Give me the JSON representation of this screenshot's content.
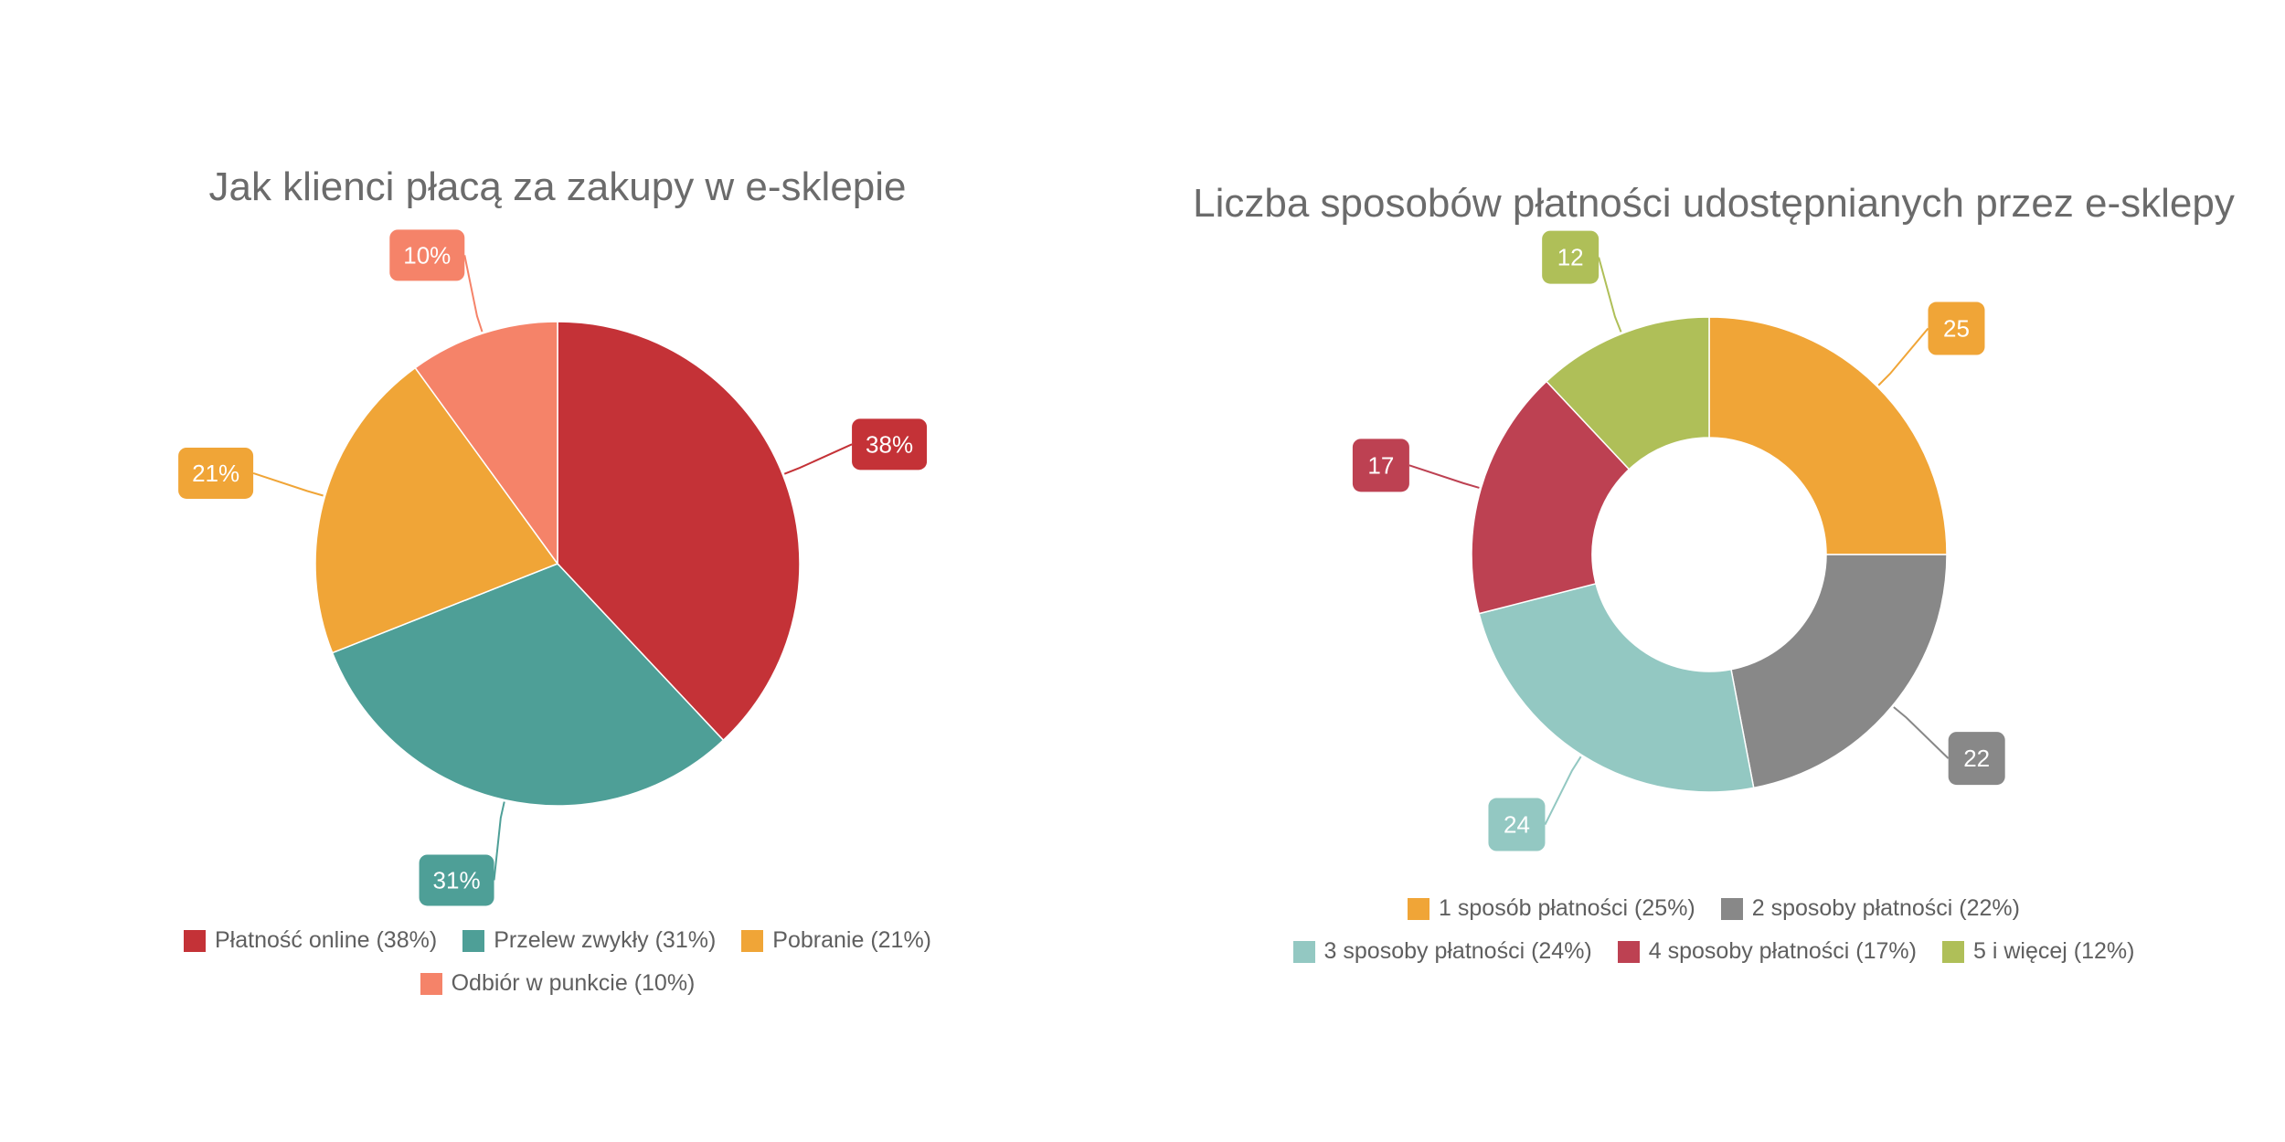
{
  "chart_data": [
    {
      "type": "pie",
      "title": "Jak klienci płacą za zakupy w e-sklepie",
      "categories": [
        "Płatność online",
        "Przelew zwykły",
        "Pobranie",
        "Odbiór w punkcie"
      ],
      "values": [
        38,
        31,
        21,
        10
      ],
      "value_labels": [
        "38%",
        "31%",
        "21%",
        "10%"
      ],
      "legend_labels": [
        "Płatność online (38%)",
        "Przelew zwykły (31%)",
        "Pobranie (21%)",
        "Odbiór w punkcie (10%)"
      ],
      "colors": [
        "#c43237",
        "#4e9f97",
        "#f0a537",
        "#f58369"
      ],
      "legend_position": "bottom"
    },
    {
      "type": "donut",
      "title": "Liczba sposobów płatności udostępnianych przez e-sklepy",
      "categories": [
        "1 sposób płatności",
        "2 sposoby płatności",
        "3 sposoby płatności",
        "4 sposoby płatności",
        "5 i więcej"
      ],
      "values": [
        25,
        22,
        24,
        17,
        12
      ],
      "value_labels": [
        "25",
        "22",
        "24",
        "17",
        "12"
      ],
      "legend_labels": [
        "1 sposób płatności (25%)",
        "2 sposoby płatności (22%)",
        "3 sposoby płatności (24%)",
        "4 sposoby płatności (17%)",
        "5 i więcej (12%)"
      ],
      "colors": [
        "#f0a537",
        "#888888",
        "#93c8c2",
        "#bd4152",
        "#afbf58"
      ],
      "legend_position": "bottom"
    }
  ]
}
